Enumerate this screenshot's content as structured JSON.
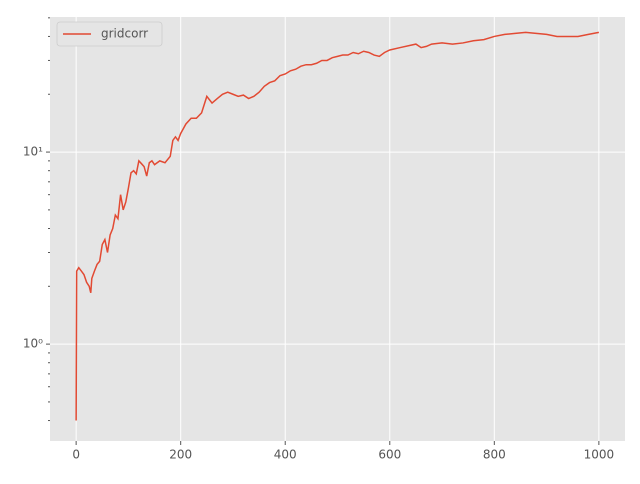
{
  "chart_data": {
    "type": "line",
    "x": [
      0,
      1,
      5,
      10,
      15,
      20,
      25,
      28,
      30,
      35,
      40,
      45,
      50,
      55,
      60,
      65,
      70,
      75,
      80,
      85,
      90,
      95,
      100,
      105,
      110,
      115,
      120,
      125,
      130,
      135,
      140,
      145,
      150,
      160,
      170,
      180,
      185,
      190,
      195,
      200,
      210,
      220,
      230,
      240,
      250,
      260,
      270,
      280,
      290,
      300,
      310,
      320,
      330,
      340,
      350,
      360,
      370,
      380,
      390,
      400,
      410,
      420,
      430,
      440,
      450,
      460,
      470,
      480,
      490,
      500,
      510,
      520,
      530,
      540,
      550,
      560,
      570,
      580,
      590,
      600,
      620,
      640,
      650,
      660,
      670,
      680,
      700,
      720,
      740,
      760,
      780,
      800,
      820,
      840,
      860,
      880,
      900,
      920,
      940,
      960,
      980,
      1000
    ],
    "series": [
      {
        "name": "gridcorr",
        "color": "#E24A33",
        "values": [
          0.4,
          2.4,
          2.5,
          2.4,
          2.3,
          2.1,
          2.0,
          1.85,
          2.2,
          2.4,
          2.6,
          2.7,
          3.3,
          3.5,
          3.0,
          3.7,
          4.0,
          4.7,
          4.5,
          6.0,
          5.0,
          5.5,
          6.5,
          7.8,
          8.0,
          7.7,
          9.0,
          8.7,
          8.4,
          7.5,
          8.8,
          9.0,
          8.6,
          9.0,
          8.8,
          9.5,
          11.5,
          12.0,
          11.5,
          12.5,
          14.0,
          15.0,
          15.0,
          16.0,
          19.5,
          18.0,
          19.0,
          20.0,
          20.5,
          20.0,
          19.5,
          19.8,
          19.0,
          19.5,
          20.5,
          22.0,
          23.0,
          23.5,
          25.0,
          25.5,
          26.5,
          27.0,
          28.0,
          28.5,
          28.5,
          29.0,
          30.0,
          30.0,
          31.0,
          31.5,
          32.0,
          32.0,
          33.0,
          32.5,
          33.5,
          33.0,
          32.0,
          31.5,
          33.0,
          34.0,
          35.0,
          36.0,
          36.5,
          35.0,
          35.5,
          36.5,
          37.0,
          36.5,
          37.0,
          38.0,
          38.5,
          40.0,
          41.0,
          41.5,
          42.0,
          41.5,
          41.0,
          40.0,
          40.0,
          40.0,
          41.0,
          42.0
        ]
      }
    ],
    "xlim": [
      -50,
      1050
    ],
    "xticks": [
      0,
      200,
      400,
      600,
      800,
      1000
    ],
    "ylim": [
      0.313,
      50.5
    ],
    "ylog": true,
    "yticks": [
      {
        "value": 1,
        "label": "10⁰"
      },
      {
        "value": 10,
        "label": "10¹"
      }
    ],
    "yminorticks": [
      0.4,
      0.5,
      0.6,
      0.7,
      0.8,
      0.9,
      2,
      3,
      4,
      5,
      6,
      7,
      8,
      9,
      20,
      30,
      40,
      50
    ],
    "grid": true,
    "legend": "upper left"
  }
}
